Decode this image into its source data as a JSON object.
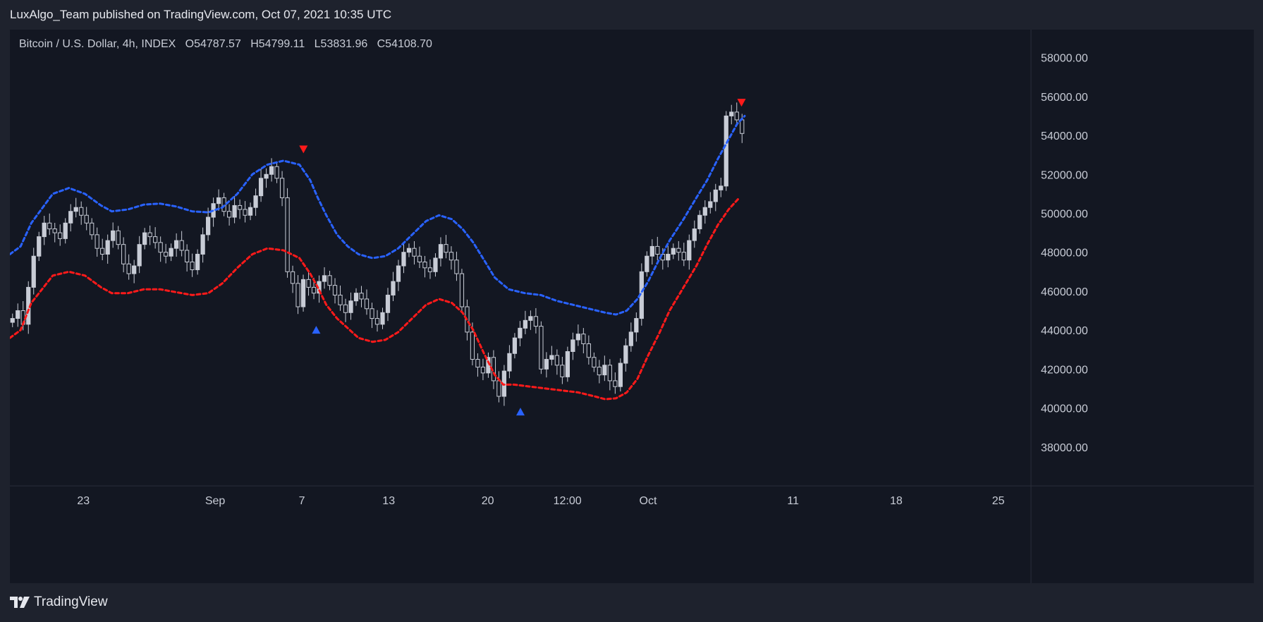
{
  "header": {
    "publish_text": "LuxAlgo_Team published on TradingView.com, Oct 07, 2021 10:35 UTC"
  },
  "legend": {
    "symbol": "Bitcoin / U.S. Dollar, 4h, INDEX",
    "open": "O54787.57",
    "high": "H54799.11",
    "low": "L53831.96",
    "close": "C54108.70"
  },
  "footer": {
    "logo_text": "TradingView"
  },
  "colors": {
    "background": "#131722",
    "panel": "#1e222d",
    "candle": "#c8ccd6",
    "upper_band": "#2962ff",
    "lower_band": "#ff1a1a",
    "signal_down": "#ff1a1a",
    "signal_up": "#2962ff"
  },
  "chart_data": {
    "type": "line",
    "title": "",
    "xlabel": "",
    "ylabel": "",
    "ylim": [
      36000,
      59000
    ],
    "x_ticks": [
      "23",
      "Sep",
      "7",
      "13",
      "20",
      "12:00",
      "Oct",
      "11",
      "18",
      "25"
    ],
    "y_ticks": [
      "58000.00",
      "56000.00",
      "54000.00",
      "52000.00",
      "50000.00",
      "48000.00",
      "46000.00",
      "44000.00",
      "42000.00",
      "40000.00",
      "38000.00"
    ],
    "series": [
      {
        "values": [
          [
            0,
            47900
          ],
          [
            10,
            48300
          ],
          [
            20,
            49500
          ],
          [
            40,
            51000
          ],
          [
            55,
            51300
          ],
          [
            70,
            51000
          ],
          [
            85,
            50400
          ],
          [
            95,
            50100
          ],
          [
            110,
            50200
          ],
          [
            125,
            50450
          ],
          [
            140,
            50500
          ],
          [
            155,
            50350
          ],
          [
            170,
            50100
          ],
          [
            185,
            50050
          ],
          [
            198,
            50300
          ],
          [
            212,
            51000
          ],
          [
            226,
            52000
          ],
          [
            240,
            52500
          ],
          [
            255,
            52700
          ],
          [
            270,
            52500
          ],
          [
            280,
            51700
          ],
          [
            287,
            50800
          ],
          [
            295,
            49900
          ],
          [
            305,
            48900
          ],
          [
            315,
            48300
          ],
          [
            325,
            47900
          ],
          [
            338,
            47700
          ],
          [
            350,
            47800
          ],
          [
            362,
            48200
          ],
          [
            375,
            48900
          ],
          [
            388,
            49600
          ],
          [
            400,
            49900
          ],
          [
            412,
            49700
          ],
          [
            422,
            49200
          ],
          [
            432,
            48500
          ],
          [
            442,
            47600
          ],
          [
            452,
            46700
          ],
          [
            465,
            46100
          ],
          [
            480,
            45900
          ],
          [
            495,
            45800
          ],
          [
            510,
            45500
          ],
          [
            525,
            45300
          ],
          [
            540,
            45100
          ],
          [
            555,
            44900
          ],
          [
            565,
            44800
          ],
          [
            575,
            45000
          ],
          [
            585,
            45600
          ],
          [
            595,
            46500
          ],
          [
            605,
            47600
          ],
          [
            615,
            48600
          ],
          [
            628,
            49700
          ],
          [
            640,
            50800
          ],
          [
            650,
            51700
          ],
          [
            660,
            52800
          ],
          [
            670,
            53800
          ],
          [
            678,
            54600
          ],
          [
            685,
            55000
          ]
        ]
      },
      {
        "values": [
          [
            0,
            43600
          ],
          [
            10,
            44000
          ],
          [
            20,
            45400
          ],
          [
            40,
            46800
          ],
          [
            55,
            47000
          ],
          [
            70,
            46800
          ],
          [
            85,
            46200
          ],
          [
            95,
            45900
          ],
          [
            110,
            45900
          ],
          [
            125,
            46100
          ],
          [
            140,
            46100
          ],
          [
            155,
            45950
          ],
          [
            170,
            45800
          ],
          [
            185,
            45900
          ],
          [
            198,
            46400
          ],
          [
            212,
            47200
          ],
          [
            226,
            47900
          ],
          [
            240,
            48200
          ],
          [
            255,
            48100
          ],
          [
            270,
            47700
          ],
          [
            280,
            46900
          ],
          [
            287,
            46200
          ],
          [
            295,
            45300
          ],
          [
            305,
            44600
          ],
          [
            315,
            44100
          ],
          [
            325,
            43600
          ],
          [
            338,
            43400
          ],
          [
            350,
            43500
          ],
          [
            362,
            43900
          ],
          [
            375,
            44600
          ],
          [
            388,
            45300
          ],
          [
            400,
            45600
          ],
          [
            412,
            45400
          ],
          [
            422,
            44900
          ],
          [
            432,
            44000
          ],
          [
            442,
            42800
          ],
          [
            452,
            41700
          ],
          [
            460,
            41200
          ],
          [
            470,
            41200
          ],
          [
            485,
            41100
          ],
          [
            500,
            41000
          ],
          [
            515,
            40900
          ],
          [
            530,
            40800
          ],
          [
            545,
            40600
          ],
          [
            555,
            40450
          ],
          [
            565,
            40500
          ],
          [
            575,
            40800
          ],
          [
            585,
            41500
          ],
          [
            595,
            42700
          ],
          [
            605,
            43800
          ],
          [
            615,
            45000
          ],
          [
            628,
            46200
          ],
          [
            640,
            47300
          ],
          [
            650,
            48400
          ],
          [
            660,
            49400
          ],
          [
            670,
            50200
          ],
          [
            680,
            50800
          ]
        ]
      }
    ],
    "candles_close": [
      44600,
      45000,
      44300,
      46200,
      47800,
      48800,
      49500,
      49200,
      49000,
      48700,
      49500,
      50100,
      50300,
      49900,
      49500,
      48900,
      48200,
      47900,
      48600,
      49100,
      48400,
      47400,
      46900,
      47300,
      48400,
      49000,
      48800,
      48500,
      48000,
      47800,
      48200,
      48600,
      48100,
      47500,
      47100,
      47900,
      48900,
      49800,
      50500,
      50800,
      50100,
      49800,
      50400,
      50200,
      49900,
      50300,
      50900,
      51800,
      52000,
      52400,
      51800,
      50800,
      47000,
      46400,
      45200,
      46600,
      46200,
      45900,
      46500,
      46800,
      46300,
      45800,
      45300,
      44900,
      45500,
      45900,
      45600,
      45100,
      44600,
      44300,
      44900,
      45800,
      46500,
      47300,
      48000,
      48200,
      47800,
      47500,
      47200,
      47000,
      47700,
      48400,
      48000,
      47600,
      46900,
      45200,
      43900,
      42500,
      42100,
      41800,
      42600,
      41400,
      40600,
      41900,
      42800,
      43600,
      44100,
      44500,
      44700,
      44200,
      42000,
      42500,
      42700,
      42200,
      41600,
      42900,
      43500,
      43800,
      43300,
      42600,
      42100,
      41700,
      42200,
      41400,
      41100,
      42300,
      43200,
      43900,
      44600,
      47000,
      47800,
      48300,
      47900,
      47600,
      47900,
      48200,
      48000,
      47600,
      48600,
      49200,
      49900,
      50300,
      50600,
      51200,
      51400,
      55000,
      55200,
      54800,
      54100
    ],
    "signals": [
      {
        "x": 7,
        "price": 53300,
        "direction": "down"
      },
      {
        "x": 8,
        "price": 44000,
        "direction": "up"
      },
      {
        "x": 22,
        "price": 39800,
        "direction": "up"
      },
      {
        "x": 38,
        "price": 55700,
        "direction": "down"
      }
    ]
  }
}
